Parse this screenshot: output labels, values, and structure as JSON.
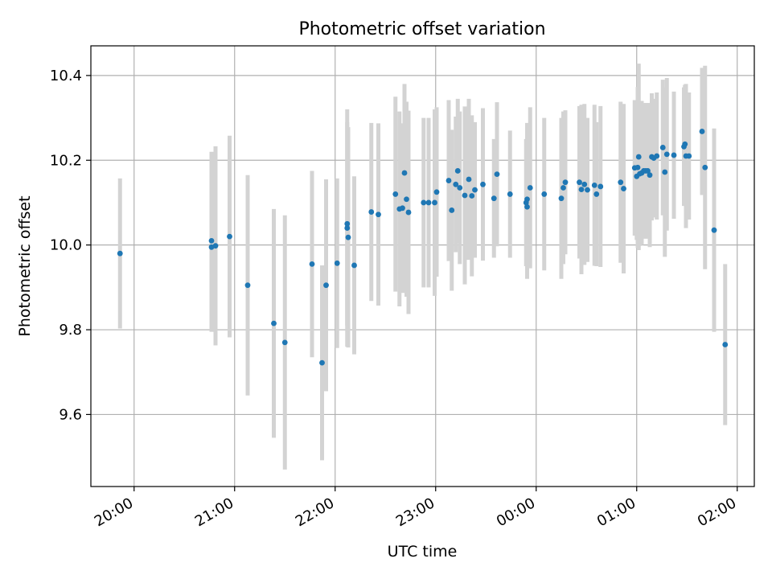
{
  "chart_data": {
    "type": "scatter",
    "title": "Photometric offset variation",
    "xlabel": "UTC time",
    "ylabel": "Photometric offset",
    "x_tick_labels": [
      "20:00",
      "21:00",
      "22:00",
      "23:00",
      "00:00",
      "01:00",
      "02:00"
    ],
    "x_ticks_hours": [
      0,
      1,
      2,
      3,
      4,
      5,
      6
    ],
    "y_ticks": [
      9.6,
      9.8,
      10.0,
      10.2,
      10.4
    ],
    "y_tick_labels": [
      "9.6",
      "9.8",
      "10.0",
      "10.2",
      "10.4"
    ],
    "xlim_hours": [
      -0.43,
      6.17
    ],
    "ylim": [
      9.43,
      10.47
    ],
    "grid": true,
    "colors": {
      "points": "#1f77b4",
      "errorbars": "#d3d3d3",
      "grid": "#b0b0b0"
    },
    "series": [
      {
        "x": [
          -0.14,
          0.77,
          0.77,
          0.81,
          0.95,
          1.13,
          1.39,
          1.5,
          1.77,
          1.87,
          1.91,
          2.02,
          2.12,
          2.12,
          2.13,
          2.19,
          2.36,
          2.43,
          2.6,
          2.64,
          2.67,
          2.69,
          2.71,
          2.73,
          2.88,
          2.93,
          2.99,
          3.01,
          3.13,
          3.16,
          3.2,
          3.22,
          3.24,
          3.29,
          3.33,
          3.36,
          3.39,
          3.47,
          3.58,
          3.61,
          3.74,
          3.9,
          3.91,
          3.91,
          3.94,
          4.08,
          4.25,
          4.27,
          4.29,
          4.43,
          4.45,
          4.48,
          4.51,
          4.58,
          4.6,
          4.64,
          4.84,
          4.87,
          4.98,
          5.0,
          5.01,
          5.02,
          5.03,
          5.05,
          5.07,
          5.09,
          5.11,
          5.13,
          5.15,
          5.17,
          5.2,
          5.26,
          5.28,
          5.3,
          5.37,
          5.47,
          5.48,
          5.49,
          5.52,
          5.65,
          5.68,
          5.77,
          5.88
        ],
        "y": [
          9.98,
          10.01,
          9.995,
          9.998,
          10.02,
          9.905,
          9.815,
          9.77,
          9.955,
          9.722,
          9.905,
          9.957,
          10.05,
          10.04,
          10.018,
          9.952,
          10.078,
          10.072,
          10.12,
          10.085,
          10.087,
          10.17,
          10.108,
          10.077,
          10.1,
          10.1,
          10.1,
          10.125,
          10.152,
          10.082,
          10.143,
          10.175,
          10.135,
          10.117,
          10.155,
          10.116,
          10.13,
          10.143,
          10.11,
          10.167,
          10.12,
          10.1,
          10.09,
          10.108,
          10.135,
          10.12,
          10.11,
          10.135,
          10.148,
          10.148,
          10.131,
          10.143,
          10.13,
          10.141,
          10.12,
          10.138,
          10.148,
          10.133,
          10.182,
          10.162,
          10.183,
          10.208,
          10.168,
          10.17,
          10.175,
          10.175,
          10.175,
          10.165,
          10.208,
          10.205,
          10.21,
          10.23,
          10.172,
          10.214,
          10.212,
          10.232,
          10.238,
          10.21,
          10.21,
          10.268,
          10.183,
          10.035,
          9.765
        ],
        "yerr": [
          0.177,
          0.21,
          0.2,
          0.235,
          0.238,
          0.26,
          0.27,
          0.3,
          0.22,
          0.23,
          0.25,
          0.2,
          0.24,
          0.28,
          0.26,
          0.21,
          0.21,
          0.215,
          0.23,
          0.23,
          0.2,
          0.21,
          0.23,
          0.24,
          0.2,
          0.2,
          0.22,
          0.2,
          0.19,
          0.19,
          0.16,
          0.17,
          0.18,
          0.21,
          0.19,
          0.19,
          0.16,
          0.18,
          0.14,
          0.17,
          0.15,
          0.15,
          0.17,
          0.18,
          0.19,
          0.18,
          0.19,
          0.18,
          0.17,
          0.18,
          0.2,
          0.19,
          0.17,
          0.19,
          0.17,
          0.19,
          0.19,
          0.2,
          0.16,
          0.15,
          0.19,
          0.22,
          0.17,
          0.17,
          0.16,
          0.16,
          0.16,
          0.17,
          0.15,
          0.14,
          0.15,
          0.16,
          0.2,
          0.18,
          0.15,
          0.14,
          0.14,
          0.17,
          0.15,
          0.15,
          0.24,
          0.24,
          0.19
        ]
      }
    ]
  }
}
